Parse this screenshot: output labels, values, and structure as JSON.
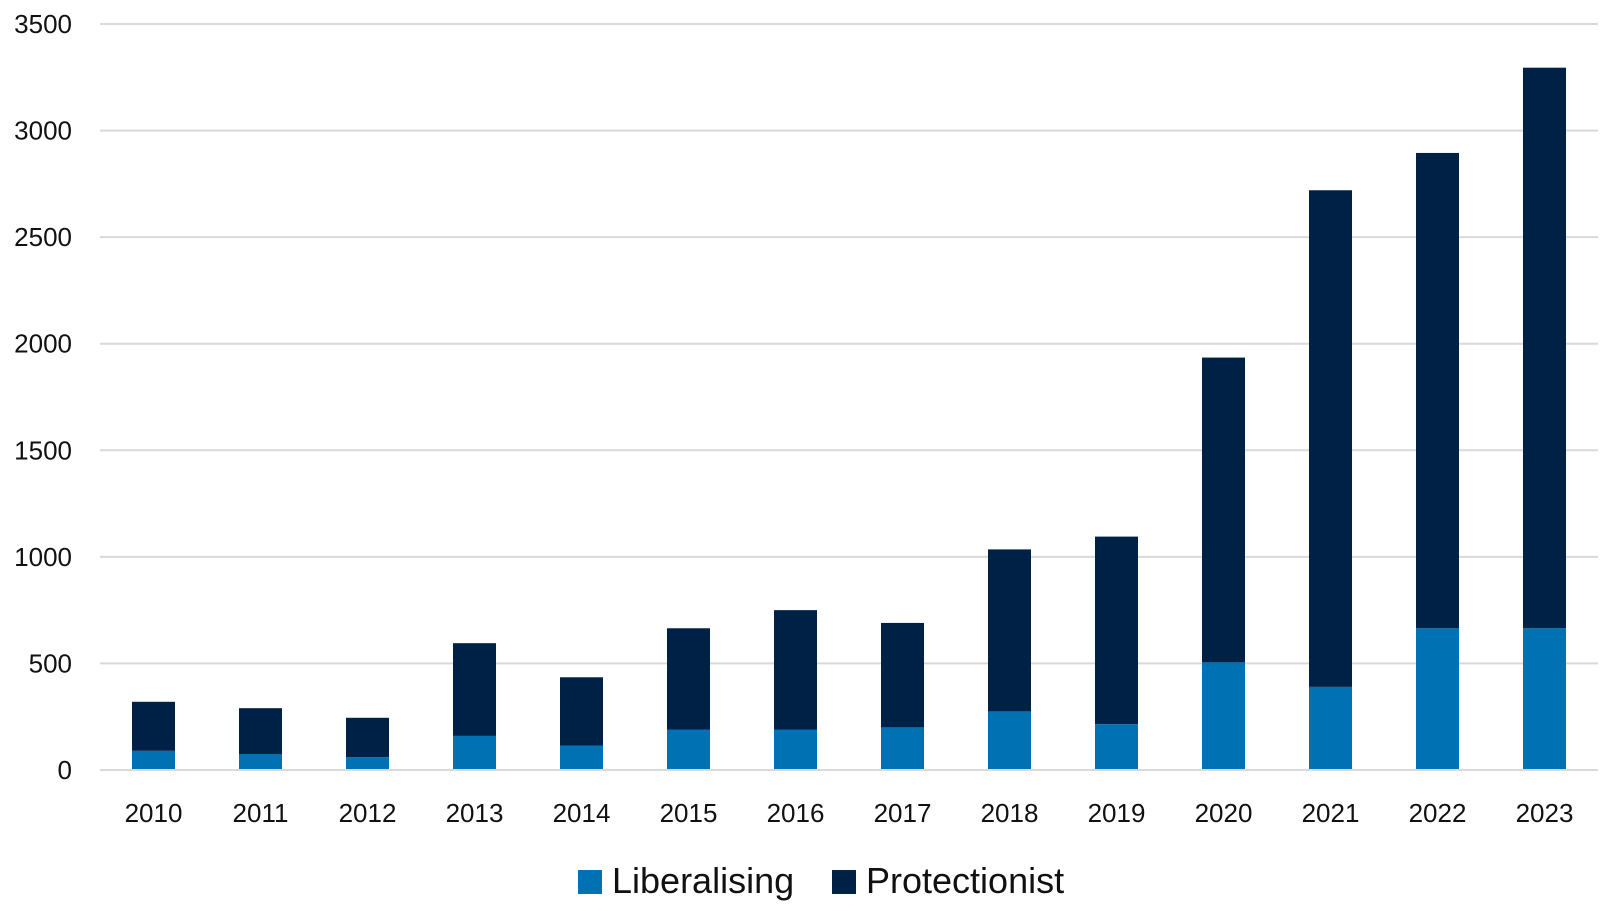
{
  "chart_data": {
    "type": "bar",
    "stacked": true,
    "title": "",
    "xlabel": "",
    "ylabel": "",
    "categories": [
      "2010",
      "2011",
      "2012",
      "2013",
      "2014",
      "2015",
      "2016",
      "2017",
      "2018",
      "2019",
      "2020",
      "2021",
      "2022",
      "2023"
    ],
    "series": [
      {
        "name": "Liberalising",
        "color": "#0072b4",
        "values": [
          90,
          75,
          60,
          160,
          115,
          190,
          190,
          200,
          275,
          215,
          505,
          390,
          665,
          665
        ]
      },
      {
        "name": "Protectionist",
        "color": "#002146",
        "values": [
          230,
          215,
          185,
          435,
          320,
          475,
          560,
          490,
          760,
          880,
          1430,
          2330,
          2230,
          2630
        ]
      }
    ],
    "ylim": [
      0,
      3500
    ],
    "yticks": [
      "0",
      "500",
      "1000",
      "1500",
      "2000",
      "2500",
      "3000",
      "3500"
    ],
    "grid": true,
    "legend_position": "bottom"
  }
}
